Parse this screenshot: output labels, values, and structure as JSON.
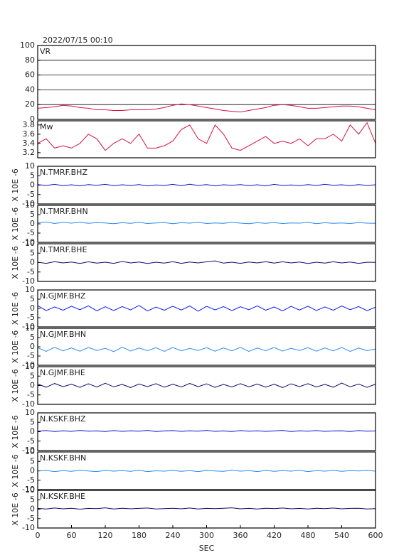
{
  "chart_data": [
    {
      "type": "line",
      "title": "2022/07/15 00:10",
      "label": "VR",
      "color": "#d81040",
      "xlim": [
        0,
        600
      ],
      "ylim": [
        0,
        100
      ],
      "yticks": [
        0,
        20,
        40,
        60,
        80,
        100
      ],
      "grid": true,
      "x": [
        0,
        15,
        30,
        45,
        60,
        75,
        90,
        105,
        120,
        135,
        150,
        165,
        180,
        195,
        210,
        225,
        240,
        255,
        270,
        285,
        300,
        315,
        330,
        345,
        360,
        375,
        390,
        405,
        420,
        435,
        450,
        465,
        480,
        495,
        510,
        525,
        540,
        555,
        570,
        585,
        600
      ],
      "values": [
        15,
        16,
        17,
        19,
        18,
        16,
        15,
        13,
        13,
        12,
        12,
        13,
        13,
        13,
        14,
        16,
        19,
        21,
        20,
        18,
        16,
        14,
        12,
        11,
        10,
        12,
        14,
        16,
        19,
        20,
        19,
        17,
        15,
        15,
        16,
        17,
        18,
        18,
        17,
        15,
        13
      ]
    },
    {
      "type": "line",
      "label": "Mw",
      "color": "#d81040",
      "xlim": [
        0,
        600
      ],
      "ylim": [
        3.09,
        3.89
      ],
      "yticks": [
        3.2,
        3.4,
        3.6,
        3.8
      ],
      "grid": false,
      "x": [
        0,
        15,
        30,
        45,
        60,
        75,
        90,
        105,
        120,
        135,
        150,
        165,
        180,
        195,
        210,
        225,
        240,
        255,
        270,
        285,
        300,
        315,
        330,
        345,
        360,
        375,
        390,
        405,
        420,
        435,
        450,
        465,
        480,
        495,
        510,
        525,
        540,
        555,
        570,
        585,
        600
      ],
      "values": [
        3.4,
        3.5,
        3.3,
        3.35,
        3.3,
        3.4,
        3.6,
        3.5,
        3.25,
        3.4,
        3.5,
        3.4,
        3.6,
        3.3,
        3.3,
        3.35,
        3.45,
        3.7,
        3.8,
        3.5,
        3.4,
        3.8,
        3.6,
        3.3,
        3.25,
        3.35,
        3.45,
        3.55,
        3.4,
        3.45,
        3.4,
        3.5,
        3.35,
        3.5,
        3.5,
        3.6,
        3.45,
        3.8,
        3.6,
        3.85,
        3.4
      ]
    },
    {
      "type": "line",
      "label": "N.TMRF.BHZ",
      "ylabel": "X 10E -6",
      "color": "#1010d0",
      "xlim": [
        0,
        600
      ],
      "ylim": [
        -10,
        10
      ],
      "yticks": [
        -10,
        -5,
        0,
        5,
        10
      ],
      "grid": false,
      "x": [
        0,
        15,
        30,
        45,
        60,
        75,
        90,
        105,
        120,
        135,
        150,
        165,
        180,
        195,
        210,
        225,
        240,
        255,
        270,
        285,
        300,
        315,
        330,
        345,
        360,
        375,
        390,
        405,
        420,
        435,
        450,
        465,
        480,
        495,
        510,
        525,
        540,
        555,
        570,
        585,
        600
      ],
      "values": [
        0.3,
        -0.2,
        0.4,
        -0.3,
        0.2,
        -0.4,
        0.3,
        -0.1,
        0.4,
        -0.3,
        0.2,
        -0.2,
        0.3,
        -0.4,
        0.1,
        -0.2,
        0.4,
        -0.3,
        0.5,
        -0.2,
        0.3,
        -0.4,
        0.2,
        -0.1,
        0.3,
        -0.3,
        0.2,
        -0.4,
        0.4,
        -0.2,
        0.1,
        -0.3,
        0.3,
        -0.2,
        0.4,
        -0.1,
        0.2,
        -0.3,
        0.3,
        -0.2,
        0.2
      ]
    },
    {
      "type": "line",
      "label": "N.TMRF.BHN",
      "ylabel": "X 10E -6",
      "color": "#2a8cf0",
      "xlim": [
        0,
        600
      ],
      "ylim": [
        -10,
        10
      ],
      "yticks": [
        -10,
        -5,
        0,
        5,
        10
      ],
      "grid": false,
      "x": [
        0,
        15,
        30,
        45,
        60,
        75,
        90,
        105,
        120,
        135,
        150,
        165,
        180,
        195,
        210,
        225,
        240,
        255,
        270,
        285,
        300,
        315,
        330,
        345,
        360,
        375,
        390,
        405,
        420,
        435,
        450,
        465,
        480,
        495,
        510,
        525,
        540,
        555,
        570,
        585,
        600
      ],
      "values": [
        0.5,
        1.0,
        0.2,
        0.8,
        0.4,
        0.9,
        0.3,
        0.7,
        0.5,
        0.1,
        0.6,
        0.3,
        0.8,
        0.2,
        0.5,
        0.7,
        0.1,
        0.6,
        0.4,
        0.9,
        0.2,
        0.5,
        0.3,
        0.8,
        0.4,
        0.1,
        0.6,
        0.3,
        0.7,
        0.2,
        0.5,
        0.4,
        0.8,
        0.1,
        0.6,
        0.3,
        0.5,
        0.2,
        0.7,
        0.4,
        0.3
      ]
    },
    {
      "type": "line",
      "label": "N.TMRF.BHE",
      "ylabel": "X 10E -6",
      "color": "#0a0a70",
      "xlim": [
        0,
        600
      ],
      "ylim": [
        -10,
        10
      ],
      "yticks": [
        -10,
        -5,
        0,
        5,
        10
      ],
      "grid": false,
      "x": [
        0,
        15,
        30,
        45,
        60,
        75,
        90,
        105,
        120,
        135,
        150,
        165,
        180,
        195,
        210,
        225,
        240,
        255,
        270,
        285,
        300,
        315,
        330,
        345,
        360,
        375,
        390,
        405,
        420,
        435,
        450,
        465,
        480,
        495,
        510,
        525,
        540,
        555,
        570,
        585,
        600
      ],
      "values": [
        0.2,
        -0.4,
        0.5,
        -0.2,
        0.3,
        -0.5,
        0.4,
        -0.3,
        0.2,
        -0.4,
        0.6,
        -0.2,
        0.3,
        -0.5,
        0.2,
        -0.3,
        0.5,
        -0.4,
        0.3,
        -0.2,
        0.4,
        0.9,
        -0.3,
        0.2,
        -0.4,
        0.3,
        -0.2,
        0.5,
        -0.3,
        0.4,
        -0.2,
        0.3,
        -0.5,
        0.2,
        -0.3,
        0.4,
        -0.2,
        0.3,
        -0.4,
        0.2,
        0.1
      ]
    },
    {
      "type": "line",
      "label": "N.GJMF.BHZ",
      "ylabel": "X 10E -6",
      "color": "#0a1ee8",
      "xlim": [
        0,
        600
      ],
      "ylim": [
        -10,
        10
      ],
      "yticks": [
        -10,
        -5,
        0,
        5,
        10
      ],
      "grid": false,
      "x": [
        0,
        15,
        30,
        45,
        60,
        75,
        90,
        105,
        120,
        135,
        150,
        165,
        180,
        195,
        210,
        225,
        240,
        255,
        270,
        285,
        300,
        315,
        330,
        345,
        360,
        375,
        390,
        405,
        420,
        435,
        450,
        465,
        480,
        495,
        510,
        525,
        540,
        555,
        570,
        585,
        600
      ],
      "values": [
        1.5,
        -1.2,
        0.8,
        -1.0,
        1.2,
        -0.7,
        1.4,
        -1.3,
        0.9,
        -1.1,
        1.0,
        -0.8,
        1.6,
        -1.4,
        0.7,
        -1.0,
        1.2,
        -0.9,
        1.3,
        -1.5,
        1.1,
        -0.8,
        1.0,
        -1.2,
        0.9,
        -0.7,
        1.4,
        -1.0,
        0.8,
        -1.3,
        1.1,
        -0.9,
        1.2,
        -1.1,
        0.8,
        -1.0,
        1.3,
        -0.7,
        1.0,
        -1.2,
        0.6
      ]
    },
    {
      "type": "line",
      "label": "N.GJMF.BHN",
      "ylabel": "X 10E -6",
      "color": "#2a8cf0",
      "xlim": [
        0,
        600
      ],
      "ylim": [
        -10,
        10
      ],
      "yticks": [
        -10,
        -5,
        0,
        5,
        10
      ],
      "grid": false,
      "x": [
        0,
        15,
        30,
        45,
        60,
        75,
        90,
        105,
        120,
        135,
        150,
        165,
        180,
        195,
        210,
        225,
        240,
        255,
        270,
        285,
        300,
        315,
        330,
        345,
        360,
        375,
        390,
        405,
        420,
        435,
        450,
        465,
        480,
        495,
        510,
        525,
        540,
        555,
        570,
        585,
        600
      ],
      "values": [
        -0.5,
        -2.5,
        -0.3,
        -2.2,
        -0.6,
        -2.4,
        -0.4,
        -2.0,
        -0.8,
        -2.6,
        -0.2,
        -2.3,
        -0.7,
        -2.1,
        -0.5,
        -2.5,
        -0.4,
        -2.2,
        -0.9,
        -2.0,
        -0.5,
        -2.4,
        -0.6,
        -2.2,
        -0.3,
        -2.5,
        -0.7,
        -2.1,
        -0.4,
        -2.3,
        -0.8,
        -2.0,
        -0.5,
        -2.4,
        -0.6,
        -2.2,
        -0.4,
        -2.5,
        -0.7,
        -2.1,
        -1.2
      ]
    },
    {
      "type": "line",
      "label": "N.GJMF.BHE",
      "ylabel": "X 10E -6",
      "color": "#0a0a70",
      "xlim": [
        0,
        600
      ],
      "ylim": [
        -10,
        10
      ],
      "yticks": [
        -10,
        -5,
        0,
        5,
        10
      ],
      "grid": false,
      "x": [
        0,
        15,
        30,
        45,
        60,
        75,
        90,
        105,
        120,
        135,
        150,
        165,
        180,
        195,
        210,
        225,
        240,
        255,
        270,
        285,
        300,
        315,
        330,
        345,
        360,
        375,
        390,
        405,
        420,
        435,
        450,
        465,
        480,
        495,
        510,
        525,
        540,
        555,
        570,
        585,
        600
      ],
      "values": [
        0.8,
        -0.9,
        1.1,
        -0.6,
        0.7,
        -1.0,
        0.9,
        -0.8,
        1.2,
        -0.7,
        0.6,
        -1.1,
        0.8,
        -0.6,
        1.0,
        -0.9,
        0.7,
        -0.8,
        1.1,
        -0.6,
        0.9,
        -1.0,
        0.6,
        -0.8,
        1.0,
        -0.7,
        0.8,
        -0.9,
        0.7,
        -1.1,
        0.9,
        -0.6,
        1.0,
        -0.8,
        0.6,
        -0.9,
        1.3,
        -0.7,
        0.8,
        -1.0,
        0.7
      ]
    },
    {
      "type": "line",
      "label": "N.KSKF.BHZ",
      "ylabel": "X 10E -6",
      "color": "#1010d0",
      "xlim": [
        0,
        600
      ],
      "ylim": [
        -10,
        10
      ],
      "yticks": [
        -10,
        -5,
        0,
        5,
        10
      ],
      "grid": false,
      "x": [
        0,
        15,
        30,
        45,
        60,
        75,
        90,
        105,
        120,
        135,
        150,
        165,
        180,
        195,
        210,
        225,
        240,
        255,
        270,
        285,
        300,
        315,
        330,
        345,
        360,
        375,
        390,
        405,
        420,
        435,
        450,
        465,
        480,
        495,
        510,
        525,
        540,
        555,
        570,
        585,
        600
      ],
      "values": [
        0.3,
        0.6,
        0.1,
        0.5,
        0.2,
        0.7,
        0.3,
        0.4,
        0.1,
        0.6,
        0.2,
        0.5,
        0.3,
        0.7,
        0.1,
        0.4,
        0.6,
        0.2,
        0.5,
        0.3,
        0.7,
        0.2,
        0.4,
        0.1,
        0.6,
        0.3,
        0.5,
        0.2,
        0.4,
        0.7,
        0.1,
        0.5,
        0.3,
        0.6,
        0.2,
        0.4,
        0.5,
        0.1,
        0.6,
        0.3,
        0.4
      ]
    },
    {
      "type": "line",
      "label": "N.KSKF.BHN",
      "ylabel": "X 10E -6",
      "color": "#2a8cf0",
      "xlim": [
        0,
        600
      ],
      "ylim": [
        -10,
        10
      ],
      "yticks": [
        -10,
        -5,
        0,
        5,
        10
      ],
      "grid": false,
      "x": [
        0,
        15,
        30,
        45,
        60,
        75,
        90,
        105,
        120,
        135,
        150,
        165,
        180,
        195,
        210,
        225,
        240,
        255,
        270,
        285,
        300,
        315,
        330,
        345,
        360,
        375,
        390,
        405,
        420,
        435,
        450,
        465,
        480,
        495,
        510,
        525,
        540,
        555,
        570,
        585,
        600
      ],
      "values": [
        -0.2,
        0.2,
        -0.4,
        0.1,
        -0.3,
        0.3,
        -0.1,
        -0.4,
        0.2,
        -0.2,
        0.1,
        -0.3,
        0.3,
        -0.4,
        0.0,
        -0.2,
        0.2,
        -0.3,
        0.1,
        -0.4,
        0.2,
        -0.1,
        -0.3,
        0.3,
        -0.2,
        0.1,
        -0.4,
        0.2,
        -0.3,
        0.1,
        -0.2,
        0.3,
        -0.4,
        0.1,
        -0.2,
        0.2,
        -0.3,
        0.1,
        -0.1,
        0.2,
        -0.2
      ]
    },
    {
      "type": "line",
      "label": "N.KSKF.BHE",
      "ylabel": "X 10E -6",
      "color": "#0a0a70",
      "xlim": [
        0,
        600
      ],
      "ylim": [
        -10,
        10
      ],
      "yticks": [
        -10,
        -5,
        0,
        5,
        10
      ],
      "grid": false,
      "xticks": [
        0,
        60,
        120,
        180,
        240,
        300,
        360,
        420,
        480,
        540,
        600
      ],
      "xlabel": "SEC",
      "x": [
        0,
        15,
        30,
        45,
        60,
        75,
        90,
        105,
        120,
        135,
        150,
        165,
        180,
        195,
        210,
        225,
        240,
        255,
        270,
        285,
        300,
        315,
        330,
        345,
        360,
        375,
        390,
        405,
        420,
        435,
        450,
        465,
        480,
        495,
        510,
        525,
        540,
        555,
        570,
        585,
        600
      ],
      "values": [
        0.4,
        0.1,
        0.6,
        0.2,
        0.5,
        0.0,
        0.4,
        0.3,
        0.7,
        0.1,
        0.5,
        0.2,
        0.4,
        0.6,
        0.1,
        0.3,
        0.5,
        0.2,
        0.6,
        0.1,
        0.4,
        0.3,
        0.5,
        0.7,
        0.2,
        0.4,
        0.1,
        0.5,
        0.3,
        0.6,
        0.2,
        0.4,
        0.1,
        0.5,
        0.3,
        0.6,
        0.2,
        0.4,
        0.5,
        0.1,
        0.3
      ]
    }
  ]
}
